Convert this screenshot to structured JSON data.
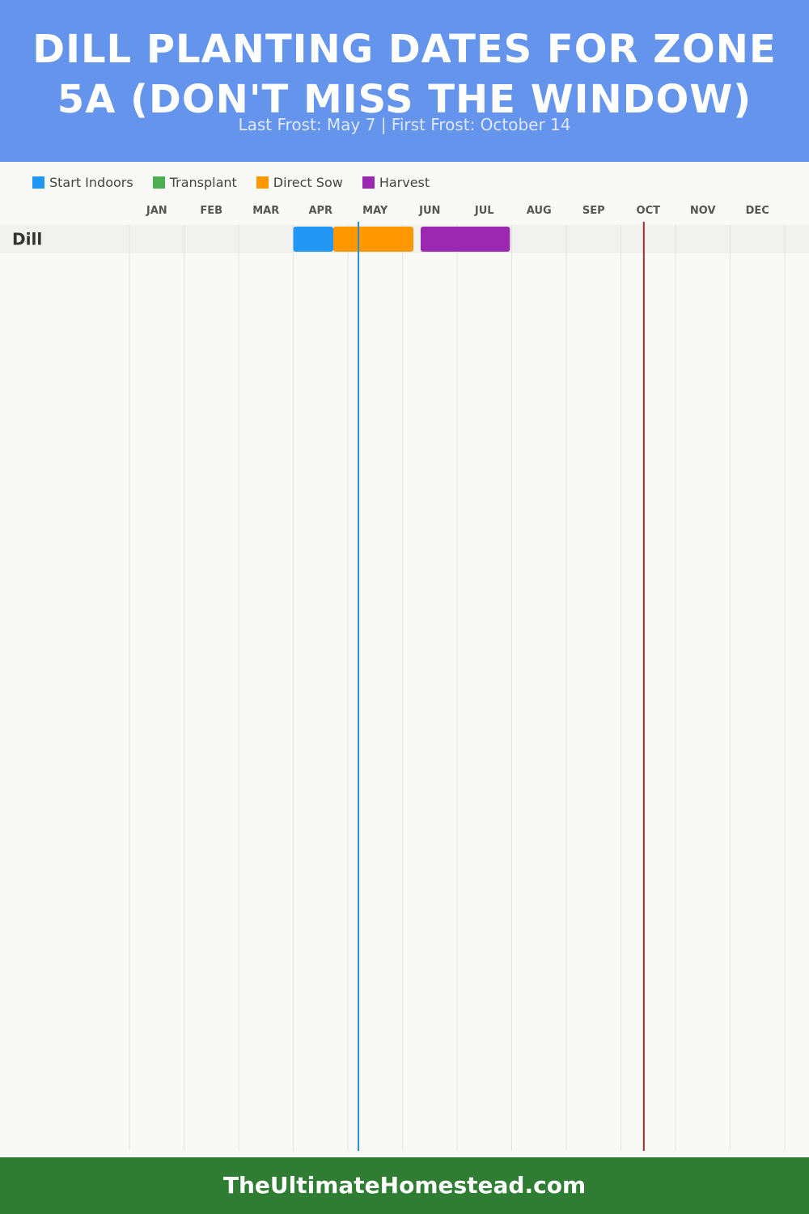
{
  "header": {
    "title": "Dill Planting Dates for Zone 5A (Don't Miss the Window)",
    "subtitle": "Last Frost: May 7 | First Frost: October 14"
  },
  "legend": [
    {
      "label": "Start Indoors",
      "color": "#2196f3"
    },
    {
      "label": "Transplant",
      "color": "#4caf50"
    },
    {
      "label": "Direct Sow",
      "color": "#ff9800"
    },
    {
      "label": "Harvest",
      "color": "#9c27b0"
    }
  ],
  "chart_data": {
    "type": "gantt",
    "months": [
      "JAN",
      "FEB",
      "MAR",
      "APR",
      "MAY",
      "JUN",
      "JUL",
      "AUG",
      "SEP",
      "OCT",
      "NOV",
      "DEC"
    ],
    "rows": [
      {
        "label": "Dill",
        "segments": [
          {
            "phase": "Start Indoors",
            "start": "Apr 1",
            "end": "Apr 23",
            "color": "#2196f3"
          },
          {
            "phase": "Direct Sow",
            "start": "Apr 23",
            "end": "Jun 7",
            "color": "#ff9800"
          },
          {
            "phase": "Harvest",
            "start": "Jun 11",
            "end": "Jul 31",
            "color": "#9c27b0"
          }
        ]
      }
    ],
    "frost_lines": [
      {
        "name": "Last Frost",
        "date": "May 7",
        "color": "#2b8cc4"
      },
      {
        "name": "First Frost",
        "date": "Oct 14",
        "color": "#a52a2a"
      }
    ],
    "grid": true
  },
  "footer": {
    "text": "TheUltimateHomestead.com"
  }
}
